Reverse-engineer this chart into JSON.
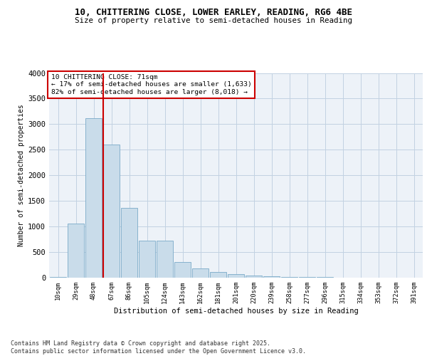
{
  "title_line1": "10, CHITTERING CLOSE, LOWER EARLEY, READING, RG6 4BE",
  "title_line2": "Size of property relative to semi-detached houses in Reading",
  "xlabel": "Distribution of semi-detached houses by size in Reading",
  "ylabel": "Number of semi-detached properties",
  "categories": [
    "10sqm",
    "29sqm",
    "48sqm",
    "67sqm",
    "86sqm",
    "105sqm",
    "124sqm",
    "143sqm",
    "162sqm",
    "181sqm",
    "201sqm",
    "220sqm",
    "239sqm",
    "258sqm",
    "277sqm",
    "296sqm",
    "315sqm",
    "334sqm",
    "353sqm",
    "372sqm",
    "391sqm"
  ],
  "values": [
    15,
    1060,
    3120,
    2600,
    1360,
    730,
    730,
    310,
    175,
    115,
    70,
    45,
    30,
    18,
    10,
    7,
    4,
    3,
    2,
    1,
    0
  ],
  "bar_color": "#c9dcea",
  "bar_edge_color": "#7aaac8",
  "grid_color": "#c2d2e2",
  "background_color": "#edf2f8",
  "property_bin_index": 3,
  "property_line_color": "#cc0000",
  "annotation_text": "10 CHITTERING CLOSE: 71sqm\n← 17% of semi-detached houses are smaller (1,633)\n82% of semi-detached houses are larger (8,018) →",
  "annotation_box_facecolor": "#ffffff",
  "annotation_box_edgecolor": "#cc0000",
  "footer_line1": "Contains HM Land Registry data © Crown copyright and database right 2025.",
  "footer_line2": "Contains public sector information licensed under the Open Government Licence v3.0.",
  "ylim": [
    0,
    4000
  ],
  "yticks": [
    0,
    500,
    1000,
    1500,
    2000,
    2500,
    3000,
    3500,
    4000
  ]
}
